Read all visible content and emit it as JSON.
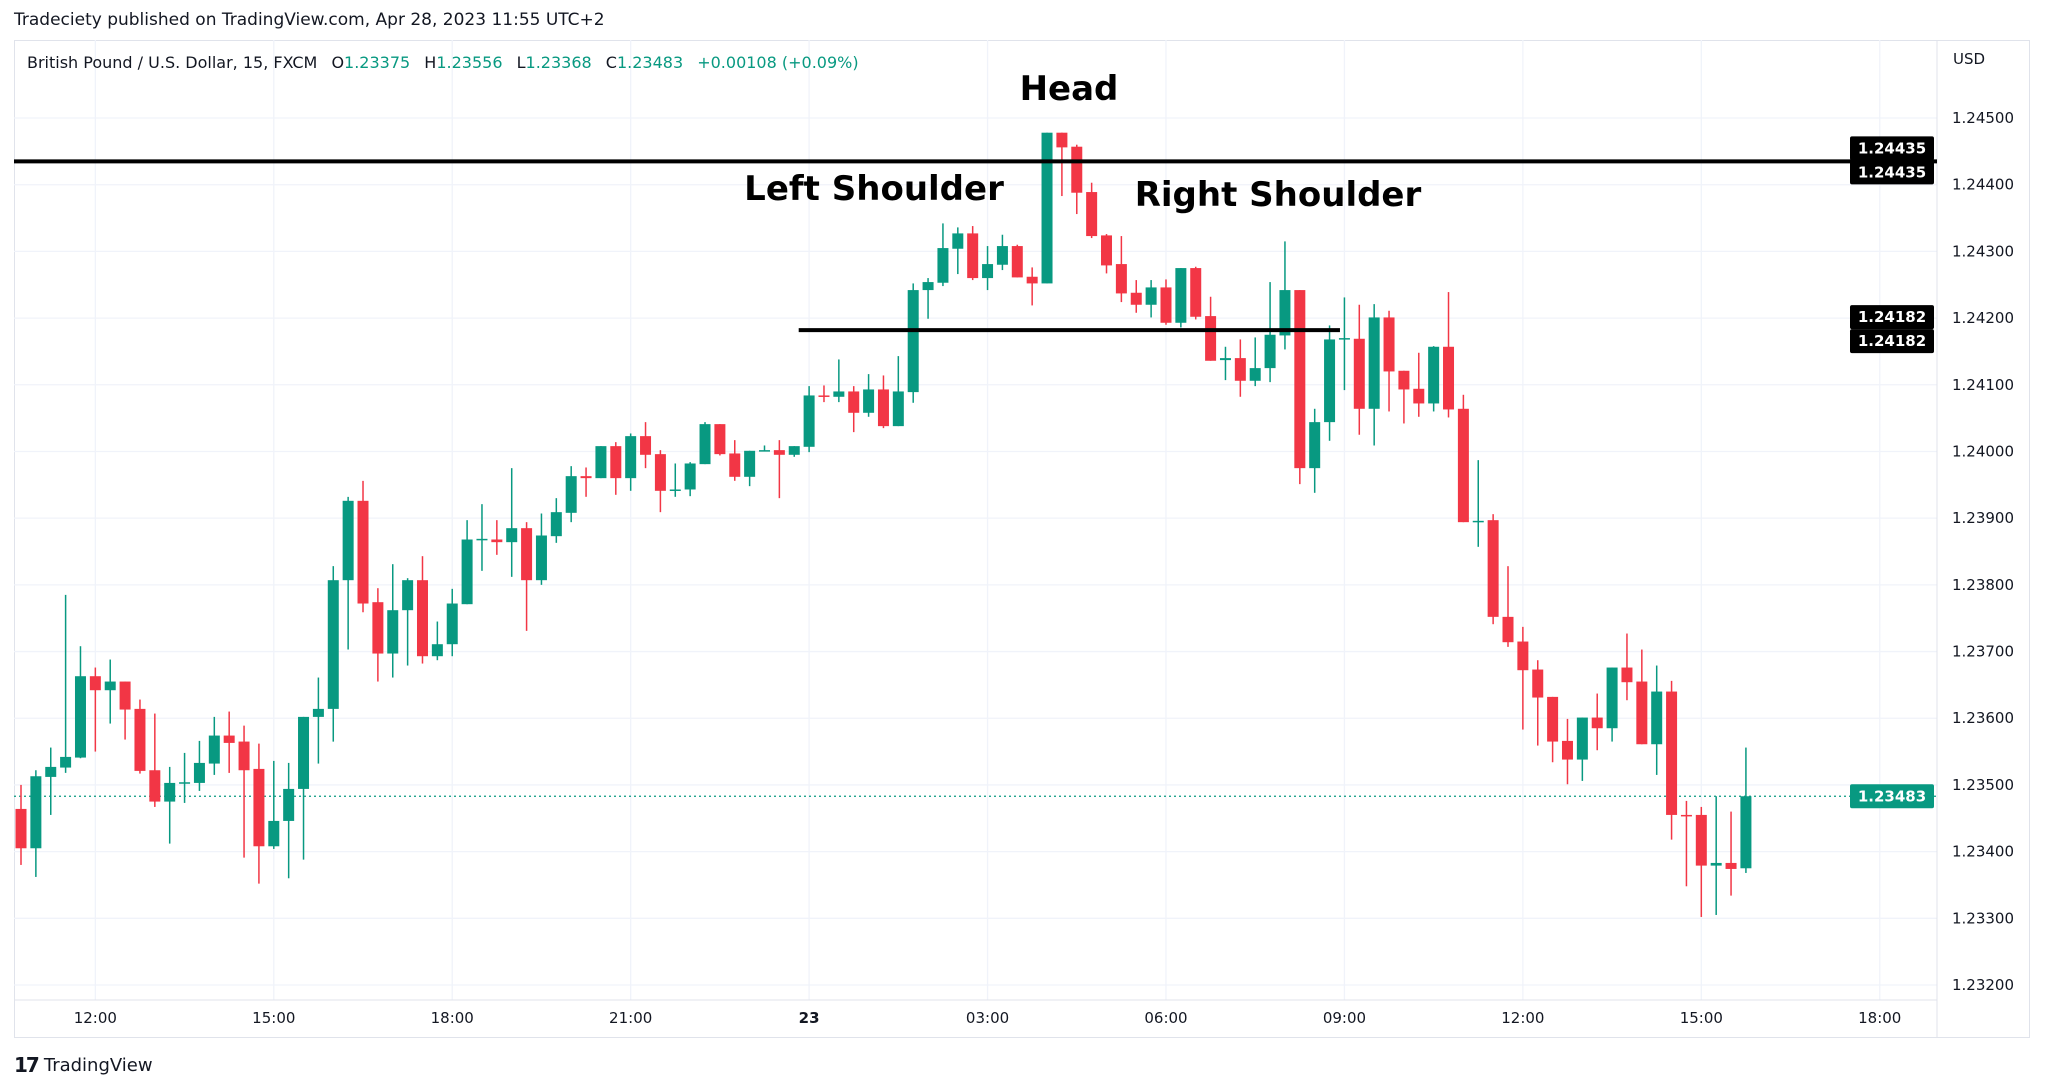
{
  "publisher_line": "Tradeciety published on TradingView.com, Apr 28, 2023 11:55 UTC+2",
  "legend": {
    "symbol": "British Pound / U.S. Dollar, 15, FXCM",
    "o_label": "O",
    "o": "1.23375",
    "h_label": "H",
    "h": "1.23556",
    "l_label": "L",
    "l": "1.23368",
    "c_label": "C",
    "c": "1.23483",
    "change": "+0.00108 (+0.09%)"
  },
  "currency": "USD",
  "branding": "TradingView",
  "colors": {
    "up": "#089981",
    "down": "#f23645",
    "grid": "#f0f3fa",
    "lines": "#000000",
    "last_price": "#089981"
  },
  "chart_data": {
    "type": "candlestick",
    "title": "",
    "interval": "15",
    "ylim": [
      1.23122,
      1.24617
    ],
    "grid": true,
    "y_ticks": [
      "1.24500",
      "1.24400",
      "1.24300",
      "1.24200",
      "1.24100",
      "1.24000",
      "1.23900",
      "1.23800",
      "1.23700",
      "1.23600",
      "1.23500",
      "1.23400",
      "1.23300",
      "1.23200"
    ],
    "x_ticks": [
      "12:00",
      "15:00",
      "18:00",
      "21:00",
      "23",
      "03:00",
      "06:00",
      "09:00",
      "12:00",
      "15:00",
      "18:00"
    ],
    "ohlc_columns": [
      "open",
      "high",
      "low",
      "close"
    ],
    "candles": [
      [
        1.23464,
        1.235,
        1.2338,
        1.23405
      ],
      [
        1.23405,
        1.23522,
        1.23362,
        1.23513
      ],
      [
        1.23512,
        1.23556,
        1.23455,
        1.23527
      ],
      [
        1.23526,
        1.23785,
        1.23518,
        1.23542
      ],
      [
        1.23541,
        1.23708,
        1.2354,
        1.23663
      ],
      [
        1.23663,
        1.23676,
        1.2355,
        1.23642
      ],
      [
        1.23642,
        1.23688,
        1.23592,
        1.23655
      ],
      [
        1.23655,
        1.23655,
        1.23568,
        1.23613
      ],
      [
        1.23614,
        1.23628,
        1.23517,
        1.23521
      ],
      [
        1.23522,
        1.23607,
        1.23467,
        1.23475
      ],
      [
        1.23475,
        1.23527,
        1.23412,
        1.23503
      ],
      [
        1.23503,
        1.23548,
        1.23473,
        1.23504
      ],
      [
        1.23503,
        1.23566,
        1.23491,
        1.23533
      ],
      [
        1.23532,
        1.23602,
        1.23515,
        1.23574
      ],
      [
        1.23574,
        1.2361,
        1.23518,
        1.23563
      ],
      [
        1.23565,
        1.23589,
        1.23391,
        1.23522
      ],
      [
        1.23524,
        1.23562,
        1.23352,
        1.23408
      ],
      [
        1.23408,
        1.23536,
        1.23404,
        1.23446
      ],
      [
        1.23446,
        1.23533,
        1.2336,
        1.23494
      ],
      [
        1.23494,
        1.23602,
        1.23388,
        1.23602
      ],
      [
        1.23602,
        1.23661,
        1.23532,
        1.23614
      ],
      [
        1.23614,
        1.23828,
        1.23565,
        1.23807
      ],
      [
        1.23807,
        1.23932,
        1.23703,
        1.23926
      ],
      [
        1.23926,
        1.23956,
        1.23759,
        1.23772
      ],
      [
        1.23774,
        1.23795,
        1.23655,
        1.23697
      ],
      [
        1.23697,
        1.23831,
        1.23661,
        1.23762
      ],
      [
        1.23762,
        1.2381,
        1.23679,
        1.23807
      ],
      [
        1.23807,
        1.23843,
        1.23682,
        1.23693
      ],
      [
        1.23693,
        1.23745,
        1.23687,
        1.23711
      ],
      [
        1.23711,
        1.23794,
        1.23693,
        1.23772
      ],
      [
        1.23771,
        1.23897,
        1.23771,
        1.23868
      ],
      [
        1.23868,
        1.23921,
        1.23821,
        1.23869
      ],
      [
        1.23868,
        1.23897,
        1.23845,
        1.23864
      ],
      [
        1.23864,
        1.23975,
        1.23812,
        1.23885
      ],
      [
        1.23885,
        1.23894,
        1.23731,
        1.23807
      ],
      [
        1.23807,
        1.23907,
        1.238,
        1.23874
      ],
      [
        1.23873,
        1.2393,
        1.23863,
        1.23909
      ],
      [
        1.23908,
        1.23978,
        1.23894,
        1.23963
      ],
      [
        1.23963,
        1.23976,
        1.23932,
        1.2396
      ],
      [
        1.2396,
        1.24008,
        1.2396,
        1.24008
      ],
      [
        1.24008,
        1.24014,
        1.23935,
        1.2396
      ],
      [
        1.2396,
        1.24027,
        1.23941,
        1.24023
      ],
      [
        1.24023,
        1.24044,
        1.23975,
        1.23995
      ],
      [
        1.23996,
        1.24002,
        1.23909,
        1.23941
      ],
      [
        1.23941,
        1.23982,
        1.23932,
        1.23943
      ],
      [
        1.23943,
        1.23984,
        1.23933,
        1.23982
      ],
      [
        1.23981,
        1.24044,
        1.23981,
        1.24041
      ],
      [
        1.24041,
        1.24041,
        1.23994,
        1.23996
      ],
      [
        1.23997,
        1.24017,
        1.23956,
        1.23962
      ],
      [
        1.23962,
        1.24001,
        1.23948,
        1.24001
      ],
      [
        1.24001,
        1.24009,
        1.24,
        1.24002
      ],
      [
        1.24002,
        1.24017,
        1.2393,
        1.23995
      ],
      [
        1.23995,
        1.24008,
        1.23992,
        1.24008
      ],
      [
        1.24007,
        1.24098,
        1.23999,
        1.24084
      ],
      [
        1.24084,
        1.24099,
        1.24074,
        1.24082
      ],
      [
        1.24082,
        1.24138,
        1.24074,
        1.2409
      ],
      [
        1.2409,
        1.24098,
        1.24029,
        1.24058
      ],
      [
        1.24058,
        1.24116,
        1.24052,
        1.24093
      ],
      [
        1.24093,
        1.24114,
        1.24035,
        1.24038
      ],
      [
        1.24038,
        1.24143,
        1.24038,
        1.2409
      ],
      [
        1.24089,
        1.24252,
        1.24073,
        1.24242
      ],
      [
        1.24242,
        1.2426,
        1.24199,
        1.24254
      ],
      [
        1.24253,
        1.24342,
        1.24248,
        1.24305
      ],
      [
        1.24304,
        1.24336,
        1.24266,
        1.24327
      ],
      [
        1.24327,
        1.24338,
        1.24257,
        1.2426
      ],
      [
        1.2426,
        1.24308,
        1.24242,
        1.24281
      ],
      [
        1.2428,
        1.24325,
        1.24272,
        1.24308
      ],
      [
        1.24308,
        1.2431,
        1.24261,
        1.24261
      ],
      [
        1.24262,
        1.24276,
        1.24219,
        1.24252
      ],
      [
        1.24252,
        1.24478,
        1.24252,
        1.24478
      ],
      [
        1.24478,
        1.24478,
        1.24383,
        1.24456
      ],
      [
        1.24457,
        1.2446,
        1.24356,
        1.24388
      ],
      [
        1.24389,
        1.24403,
        1.2432,
        1.24323
      ],
      [
        1.24324,
        1.24326,
        1.24267,
        1.24279
      ],
      [
        1.24281,
        1.24323,
        1.24224,
        1.24237
      ],
      [
        1.24238,
        1.24257,
        1.24208,
        1.2422
      ],
      [
        1.2422,
        1.24257,
        1.24201,
        1.24246
      ],
      [
        1.24246,
        1.24258,
        1.2419,
        1.24193
      ],
      [
        1.24193,
        1.24275,
        1.24186,
        1.24275
      ],
      [
        1.24275,
        1.24277,
        1.24198,
        1.24202
      ],
      [
        1.24203,
        1.24232,
        1.24136,
        1.24136
      ],
      [
        1.24137,
        1.24157,
        1.24107,
        1.2414
      ],
      [
        1.2414,
        1.24168,
        1.24082,
        1.24106
      ],
      [
        1.24106,
        1.24171,
        1.24098,
        1.24125
      ],
      [
        1.24125,
        1.24254,
        1.24104,
        1.24175
      ],
      [
        1.24174,
        1.24315,
        1.24153,
        1.24242
      ],
      [
        1.24242,
        1.24242,
        1.23951,
        1.23975
      ],
      [
        1.23975,
        1.24064,
        1.23938,
        1.24044
      ],
      [
        1.24044,
        1.24189,
        1.24016,
        1.24168
      ],
      [
        1.24168,
        1.24231,
        1.24092,
        1.2417
      ],
      [
        1.24169,
        1.2422,
        1.24025,
        1.24064
      ],
      [
        1.24064,
        1.24221,
        1.24009,
        1.24201
      ],
      [
        1.24201,
        1.24211,
        1.2406,
        1.2412
      ],
      [
        1.24121,
        1.24121,
        1.24042,
        1.24093
      ],
      [
        1.24094,
        1.24148,
        1.24052,
        1.24072
      ],
      [
        1.24072,
        1.24158,
        1.2406,
        1.24157
      ],
      [
        1.24157,
        1.24239,
        1.24051,
        1.24063
      ],
      [
        1.24064,
        1.24085,
        1.23894,
        1.23894
      ],
      [
        1.23894,
        1.23987,
        1.23857,
        1.23896
      ],
      [
        1.23897,
        1.23906,
        1.23741,
        1.23752
      ],
      [
        1.23752,
        1.23828,
        1.23707,
        1.23714
      ],
      [
        1.23715,
        1.23737,
        1.23583,
        1.23672
      ],
      [
        1.23673,
        1.23687,
        1.23559,
        1.23631
      ],
      [
        1.23632,
        1.23632,
        1.23534,
        1.23565
      ],
      [
        1.23566,
        1.23599,
        1.23501,
        1.23538
      ],
      [
        1.23538,
        1.23601,
        1.23506,
        1.23601
      ],
      [
        1.23601,
        1.23637,
        1.23552,
        1.23585
      ],
      [
        1.23585,
        1.23676,
        1.23565,
        1.23676
      ],
      [
        1.23676,
        1.23727,
        1.23627,
        1.23654
      ],
      [
        1.23655,
        1.23703,
        1.23561,
        1.23561
      ],
      [
        1.23561,
        1.23679,
        1.23515,
        1.2364
      ],
      [
        1.2364,
        1.23656,
        1.23418,
        1.23455
      ],
      [
        1.23455,
        1.23476,
        1.23348,
        1.23453
      ],
      [
        1.23455,
        1.23467,
        1.23302,
        1.23379
      ],
      [
        1.23379,
        1.23483,
        1.23305,
        1.23383
      ],
      [
        1.23383,
        1.2346,
        1.23334,
        1.23374
      ],
      [
        1.23375,
        1.23556,
        1.23368,
        1.23483
      ]
    ],
    "horizontal_lines": [
      {
        "price": 1.24435,
        "label": "1.24435"
      },
      {
        "price": 1.24182,
        "label": "1.24182"
      }
    ],
    "last_price": {
      "price": 1.23483,
      "label": "1.23483"
    },
    "annotations": [
      "Head",
      "Left Shoulder",
      "Right Shoulder"
    ]
  }
}
